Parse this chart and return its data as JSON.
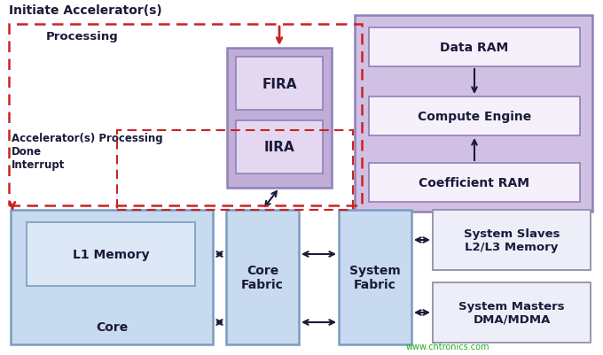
{
  "bg_color": "#ffffff",
  "title_text": "Initiate Accelerator(s)",
  "processing_text": "Processing",
  "interrupt_text": "Accelerator(s) Processing\nDone\nInterrupt",
  "fira_label": "FIRA",
  "iira_label": "IIRA",
  "data_ram_label": "Data RAM",
  "compute_engine_label": "Compute Engine",
  "coeff_ram_label": "Coefficient RAM",
  "l1_memory_label": "L1 Memory",
  "core_label": "Core",
  "core_fabric_label": "Core\nFabric",
  "system_fabric_label": "System\nFabric",
  "system_slaves_label": "System Slaves\nL2/L3 Memory",
  "system_masters_label": "System Masters\nDMA/MDMA",
  "watermark": "www.chtronics.com",
  "light_blue": "#c8daf0",
  "medium_purple": "#c0aed8",
  "light_purple_bg": "#d0c0e4",
  "box_white": "#f5f0fa",
  "box_border_blue": "#7a9cc0",
  "box_border_purple": "#9080b8",
  "box_border_gray": "#9090aa",
  "text_dark": "#1a1a3a",
  "red_dashed": "#cc2222",
  "arrow_dark": "#1a1a3a",
  "watermark_color": "#22aa22",
  "figsize": [
    6.8,
    4.02
  ],
  "dpi": 100
}
